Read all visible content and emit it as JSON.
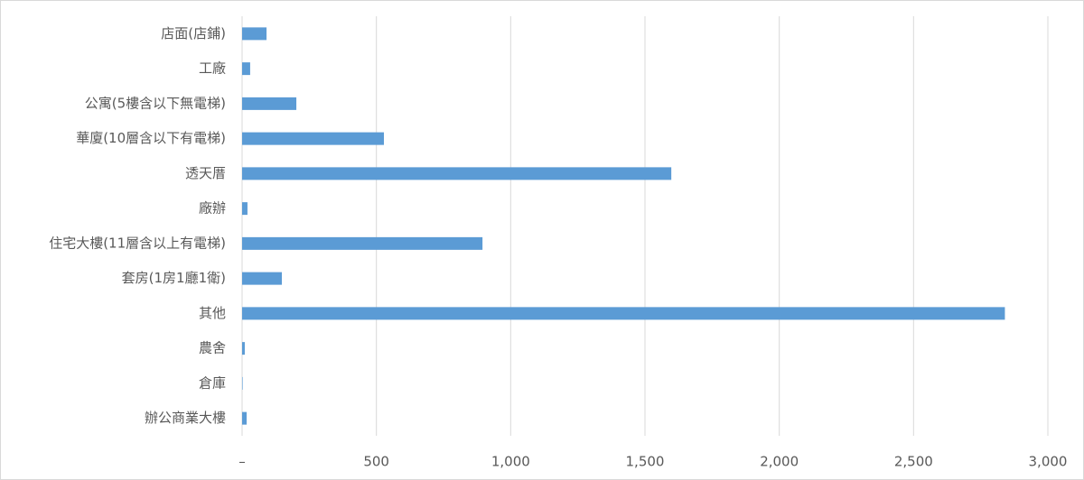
{
  "chart_data": {
    "type": "bar",
    "orientation": "horizontal",
    "categories": [
      "店面(店鋪)",
      "工廠",
      "公寓(5樓含以下無電梯)",
      "華廈(10層含以下有電梯)",
      "透天厝",
      "廠辦",
      "住宅大樓(11層含以上有電梯)",
      "套房(1房1廳1衛)",
      "其他",
      "農舍",
      "倉庫",
      "辦公商業大樓"
    ],
    "values": [
      91,
      30,
      202,
      528,
      1598,
      20,
      895,
      148,
      2840,
      10,
      2,
      17
    ],
    "color": "#5b9bd5",
    "xlim": [
      0,
      3000
    ],
    "xticks": [
      {
        "value": 0,
        "label": "–"
      },
      500,
      {
        "value": 1000,
        "label": "1,000"
      },
      {
        "value": 1500,
        "label": "1,500"
      },
      {
        "value": 2000,
        "label": "2,000"
      },
      {
        "value": 2500,
        "label": "2,500"
      },
      {
        "value": 3000,
        "label": "3,000"
      }
    ],
    "grid": true
  }
}
